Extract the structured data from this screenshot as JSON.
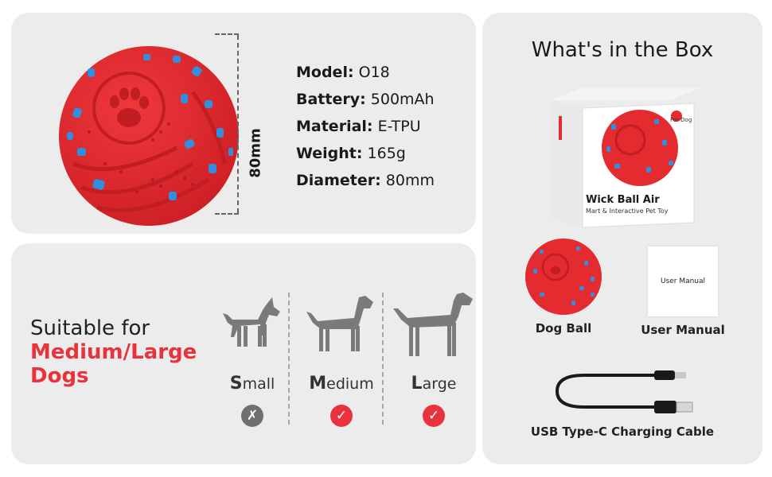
{
  "specs": {
    "dimension": "80mm",
    "rows": [
      {
        "key": "Model:",
        "value": "O18"
      },
      {
        "key": "Battery:",
        "value": "500mAh"
      },
      {
        "key": "Material:",
        "value": "E-TPU"
      },
      {
        "key": "Weight:",
        "value": "165g"
      },
      {
        "key": "Diameter:",
        "value": "80mm"
      }
    ]
  },
  "suitable": {
    "line1": "Suitable for",
    "line2": "Medium/Large",
    "line3": "Dogs",
    "sizes": [
      {
        "initial": "S",
        "rest": "mall",
        "mark": "✗",
        "ok": false
      },
      {
        "initial": "M",
        "rest": "edium",
        "mark": "✓",
        "ok": true
      },
      {
        "initial": "L",
        "rest": "arge",
        "mark": "✓",
        "ok": true
      }
    ]
  },
  "box": {
    "title": "What's in the Box",
    "product_name": "Wick Ball Air",
    "product_sub": "Mart & Interactive Pet Toy",
    "for_dog": "For Dog",
    "manual_text": "User Manual",
    "items": [
      "Dog Ball",
      "User Manual",
      "USB Type-C Charging Cable"
    ]
  },
  "colors": {
    "accent": "#e8323c",
    "ball_red": "#e42b2f",
    "ball_blue": "#2f8fe0",
    "panel": "#ececec"
  }
}
